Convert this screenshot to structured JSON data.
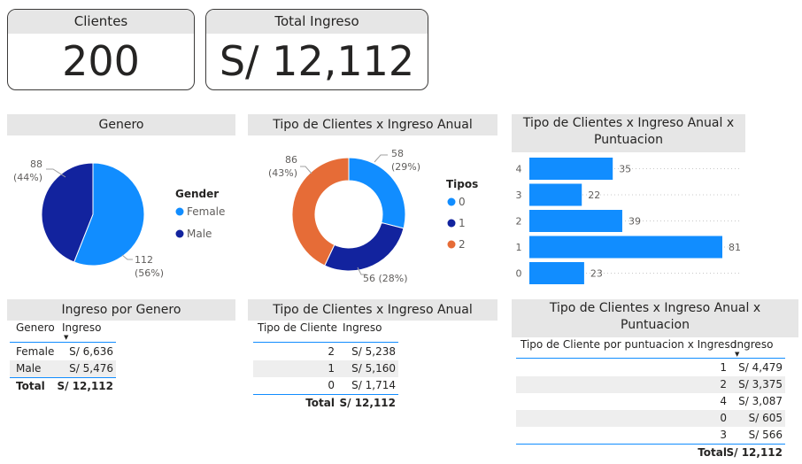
{
  "kpis": {
    "clientes": {
      "label": "Clientes",
      "value": "200"
    },
    "ingreso": {
      "label": "Total Ingreso",
      "value": "S/ 12,112"
    }
  },
  "colors": {
    "female": "#118dff",
    "male": "#12239e",
    "t0": "#118dff",
    "t1": "#12239e",
    "t2": "#e66c37"
  },
  "genero_chart": {
    "title": "Genero",
    "legend_title": "Gender",
    "legend": [
      "Female",
      "Male"
    ],
    "labels": {
      "male_count": "88",
      "male_pct": "(44%)",
      "female_count": "112",
      "female_pct": "(56%)"
    }
  },
  "tipo_chart": {
    "title": "Tipo de Clientes x Ingreso Anual",
    "legend_title": "Tipos",
    "legend": [
      "0",
      "1",
      "2"
    ],
    "labels": {
      "t0_count": "58",
      "t0_pct": "(29%)",
      "t1": "56 (28%)",
      "t2_count": "86",
      "t2_pct": "(43%)"
    }
  },
  "punt_chart": {
    "title": "Tipo de Clientes x Ingreso Anual x Puntuacion",
    "title_l1": "Tipo de Clientes x Ingreso Anual x",
    "title_l2": "Puntuacion"
  },
  "chart_data": [
    {
      "type": "pie",
      "categories": [
        "Female",
        "Male"
      ],
      "values": [
        112,
        88
      ],
      "percent": [
        56,
        44
      ],
      "title": "Genero"
    },
    {
      "type": "pie",
      "categories": [
        "0",
        "1",
        "2"
      ],
      "values": [
        58,
        56,
        86
      ],
      "percent": [
        29,
        28,
        43
      ],
      "title": "Tipo de Clientes x Ingreso Anual"
    },
    {
      "type": "bar",
      "orientation": "horizontal",
      "categories": [
        "4",
        "3",
        "2",
        "1",
        "0"
      ],
      "values": [
        35,
        22,
        39,
        81,
        23
      ],
      "title": "Tipo de Clientes x Ingreso Anual x Puntuacion",
      "xlim": [
        0,
        81
      ]
    }
  ],
  "tabla_genero": {
    "title": "Ingreso por Genero",
    "headers": [
      "Genero",
      "Ingreso"
    ],
    "rows": [
      [
        "Female",
        "S/ 6,636"
      ],
      [
        "Male",
        "S/ 5,476"
      ]
    ],
    "total_label": "Total",
    "total": "S/ 12,112"
  },
  "tabla_tipo": {
    "title": "Tipo de Clientes x Ingreso Anual",
    "headers": [
      "Tipo de Cliente",
      "Ingreso"
    ],
    "rows": [
      [
        "2",
        "S/ 5,238"
      ],
      [
        "1",
        "S/ 5,160"
      ],
      [
        "0",
        "S/ 1,714"
      ]
    ],
    "total_label": "Total",
    "total": "S/ 12,112"
  },
  "tabla_punt": {
    "title_l1": "Tipo de Clientes x Ingreso Anual x",
    "title_l2": "Puntuacion",
    "headers": [
      "Tipo de Cliente por puntuacion x Ingreso",
      "Ingreso"
    ],
    "rows": [
      [
        "1",
        "S/ 4,479"
      ],
      [
        "2",
        "S/ 3,375"
      ],
      [
        "4",
        "S/ 3,087"
      ],
      [
        "0",
        "S/ 605"
      ],
      [
        "3",
        "S/ 566"
      ]
    ],
    "total_label": "Total",
    "total": "S/ 12,112"
  }
}
